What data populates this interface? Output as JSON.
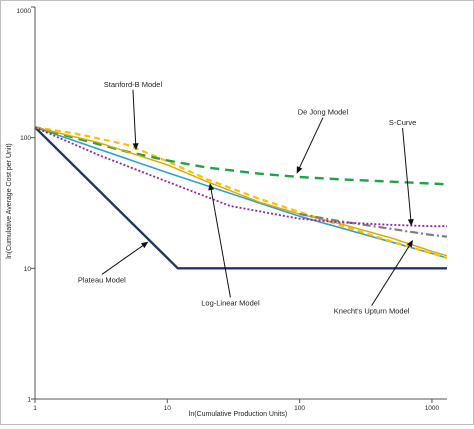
{
  "chart_data": {
    "type": "line",
    "xscale": "log",
    "yscale": "log",
    "xlim": [
      1,
      1300
    ],
    "ylim": [
      1,
      1000
    ],
    "xticks": [
      "1",
      "10",
      "100",
      "1000"
    ],
    "yticks": [
      "1",
      "10",
      "100",
      "1000"
    ],
    "xlabel": "ln(Cumulative Production Units)",
    "ylabel": "ln(Cumulative Average Cost per Unit)",
    "grid": false,
    "legend": "none",
    "series": [
      {
        "key": "plateau",
        "color": "#1f3864",
        "dash": "",
        "width": 2.4,
        "x": [
          1,
          12,
          1300
        ],
        "y": [
          120,
          10,
          10
        ]
      },
      {
        "key": "loglinear",
        "color": "#2e9fd8",
        "dash": "",
        "width": 1.6,
        "x": [
          1,
          10,
          100,
          1000,
          1300
        ],
        "y": [
          120,
          54,
          25,
          13,
          12
        ]
      },
      {
        "key": "stanford",
        "color": "#ffc000",
        "dash": "6,4",
        "width": 2.2,
        "x": [
          1,
          2,
          5,
          10,
          20,
          50,
          100,
          200,
          500,
          1000,
          1300
        ],
        "y": [
          120,
          108,
          88,
          66,
          48,
          34,
          27,
          21.5,
          16,
          13,
          12
        ]
      },
      {
        "key": "dejong",
        "color": "#21a249",
        "dash": "9,6",
        "width": 2.4,
        "x": [
          1,
          5,
          10,
          20,
          50,
          100,
          200,
          500,
          1000,
          1300
        ],
        "y": [
          120,
          78,
          67,
          59,
          53,
          50,
          48,
          46,
          44.5,
          44
        ]
      },
      {
        "key": "scurve",
        "color": "#e0a800",
        "dash": "",
        "width": 1.4,
        "x": [
          1,
          3,
          10,
          20,
          50,
          100,
          200,
          500,
          1000,
          1300
        ],
        "y": [
          120,
          92,
          62,
          46,
          32,
          26,
          22,
          17,
          13.5,
          12.5
        ]
      },
      {
        "key": "knecht",
        "color": "#7f7f7f",
        "dash": "8,3,2,3",
        "width": 2.2,
        "x": [
          100,
          200,
          500,
          1000,
          1300
        ],
        "y": [
          26,
          23,
          20,
          18,
          17.5
        ]
      },
      {
        "key": "purple",
        "color": "#8e24aa",
        "dash": "2,2",
        "width": 1.8,
        "x": [
          1,
          3,
          10,
          30,
          100,
          200,
          500,
          1000,
          1300
        ],
        "y": [
          120,
          74,
          46,
          30,
          24,
          22.5,
          21.5,
          21,
          21
        ]
      }
    ],
    "annotations": [
      {
        "key": "stanford",
        "text": "Stanford-B Model",
        "at": [
          5.5,
          245
        ],
        "arrow_to": [
          5.8,
          80
        ]
      },
      {
        "key": "dejong",
        "text": "De Jong Model",
        "at": [
          150,
          150
        ],
        "arrow_to": [
          95,
          53
        ]
      },
      {
        "key": "scurve",
        "text": "S-Curve",
        "at": [
          600,
          125
        ],
        "arrow_to": [
          700,
          21
        ]
      },
      {
        "key": "loglinear",
        "text": "Log-Linear Model",
        "at": [
          30,
          5.2
        ],
        "arrow_to": [
          21,
          45
        ]
      },
      {
        "key": "plateau",
        "text": "Plateau Model",
        "at": [
          3.2,
          7.8
        ],
        "arrow_to": [
          7.2,
          16
        ]
      },
      {
        "key": "knecht",
        "text": "Knecht's Upturn Model",
        "at": [
          350,
          4.5
        ],
        "arrow_to": [
          720,
          16.5
        ]
      }
    ]
  }
}
